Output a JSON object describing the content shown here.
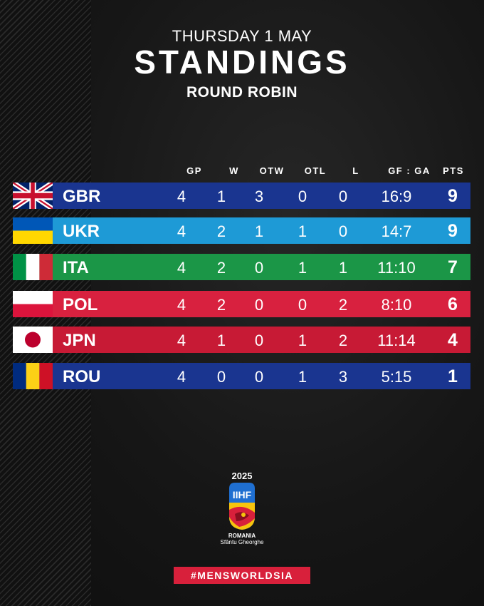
{
  "header": {
    "date": "THURSDAY 1 MAY",
    "title": "STANDINGS",
    "subtitle": "ROUND ROBIN"
  },
  "columns": [
    "GP",
    "W",
    "OTW",
    "OTL",
    "L",
    "GF : GA",
    "PTS"
  ],
  "rows": [
    {
      "code": "GBR",
      "flag": "uk-flag-icon",
      "color": "#1a3590",
      "gp": "4",
      "w": "1",
      "otw": "3",
      "otl": "0",
      "l": "0",
      "gfga": "16:9",
      "pts": "9"
    },
    {
      "code": "UKR",
      "flag": "ukraine-flag-icon",
      "color": "#1e9ad6",
      "gp": "4",
      "w": "2",
      "otw": "1",
      "otl": "1",
      "l": "0",
      "gfga": "14:7",
      "pts": "9"
    },
    {
      "code": "ITA",
      "flag": "italy-flag-icon",
      "color": "#1b9647",
      "gp": "4",
      "w": "2",
      "otw": "0",
      "otl": "1",
      "l": "1",
      "gfga": "11:10",
      "pts": "7"
    },
    {
      "code": "POL",
      "flag": "poland-flag-icon",
      "color": "#d8213f",
      "gp": "4",
      "w": "2",
      "otw": "0",
      "otl": "0",
      "l": "2",
      "gfga": "8:10",
      "pts": "6"
    },
    {
      "code": "JPN",
      "flag": "japan-flag-icon",
      "color": "#c71a35",
      "gp": "4",
      "w": "1",
      "otw": "0",
      "otl": "1",
      "l": "2",
      "gfga": "11:14",
      "pts": "4"
    },
    {
      "code": "ROU",
      "flag": "romania-flag-icon",
      "color": "#1a3590",
      "gp": "4",
      "w": "0",
      "otw": "0",
      "otl": "1",
      "l": "3",
      "gfga": "5:15",
      "pts": "1"
    }
  ],
  "logo": {
    "year": "2025",
    "brand": "IIHF",
    "country": "ROMANIA",
    "city": "Sfântu Gheorghe"
  },
  "hashtag": "#MENSWORLDSIA"
}
